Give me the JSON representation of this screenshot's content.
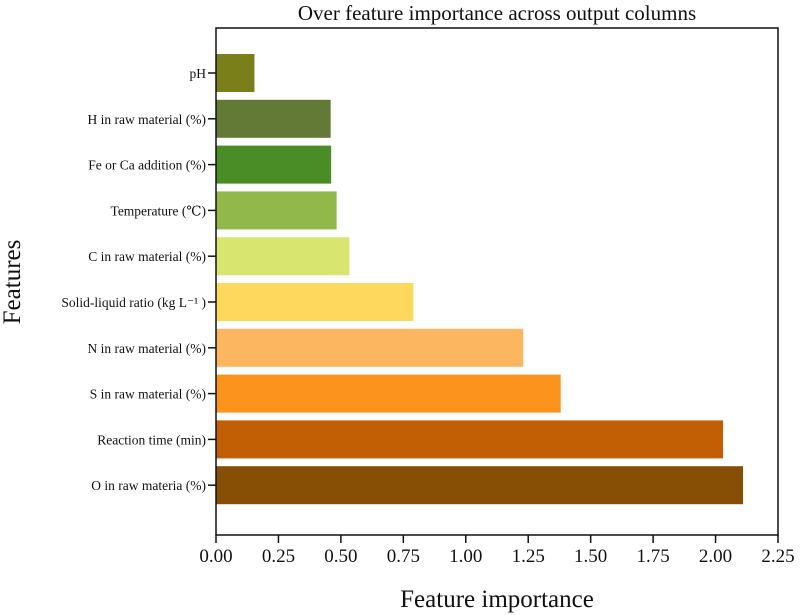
{
  "chart_data": {
    "type": "bar",
    "orientation": "horizontal",
    "title": "Over feature importance across output columns",
    "xlabel": "Feature importance",
    "ylabel": "Features",
    "xlim": [
      0,
      2.25
    ],
    "xticks": [
      "0.00",
      "0.25",
      "0.50",
      "0.75",
      "1.00",
      "1.25",
      "1.50",
      "1.75",
      "2.00",
      "2.25"
    ],
    "grid": false,
    "categories": [
      "pH",
      "H in raw material (%)",
      "Fe or Ca addition (%)",
      "Temperature (℃)",
      "C in raw material (%)",
      "Solid-liquid ratio (kg L⁻¹ )",
      "N in raw material (%)",
      "S in raw material (%)",
      "Reaction time (min)",
      "O in raw materia (%)"
    ],
    "values": [
      0.154,
      0.459,
      0.461,
      0.483,
      0.534,
      0.79,
      1.23,
      1.38,
      2.03,
      2.11
    ],
    "colors": [
      "#7a7f1a",
      "#627a35",
      "#4a8c25",
      "#90b84a",
      "#d8e670",
      "#fdd85c",
      "#fdb660",
      "#fb931c",
      "#c25f05",
      "#874e05"
    ]
  }
}
